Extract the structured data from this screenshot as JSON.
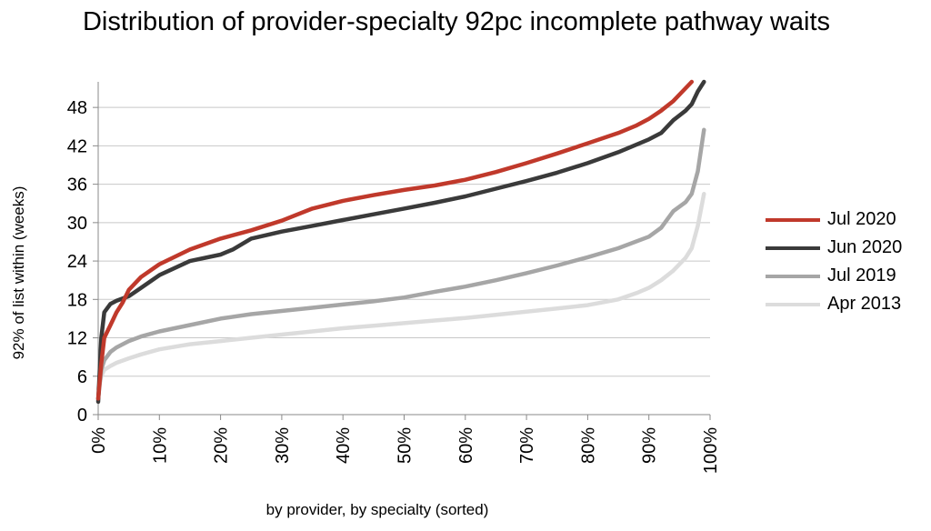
{
  "chart_data": {
    "type": "line",
    "title": "Distribution of provider-specialty 92pc incomplete pathway waits",
    "xlabel": "by provider, by specialty (sorted)",
    "ylabel": "92% of list within (weeks)",
    "x_unit": "%",
    "xlim": [
      0,
      100
    ],
    "ylim": [
      0,
      52
    ],
    "xticks": [
      0,
      10,
      20,
      30,
      40,
      50,
      60,
      70,
      80,
      90,
      100
    ],
    "xtick_labels": [
      "0%",
      "10%",
      "20%",
      "30%",
      "40%",
      "50%",
      "60%",
      "70%",
      "80%",
      "90%",
      "100%"
    ],
    "yticks": [
      0,
      6,
      12,
      18,
      24,
      30,
      36,
      42,
      48
    ],
    "ytick_labels": [
      "0",
      "6",
      "12",
      "18",
      "24",
      "30",
      "36",
      "42",
      "48"
    ],
    "grid": "horizontal",
    "legend_position": "right",
    "series": [
      {
        "name": "Jul 2020",
        "color": "#c0392b",
        "x": [
          0,
          0.5,
          1,
          2,
          3,
          4,
          5,
          7,
          10,
          15,
          20,
          25,
          30,
          35,
          40,
          45,
          50,
          55,
          60,
          65,
          70,
          75,
          80,
          85,
          88,
          90,
          92,
          94,
          96,
          97
        ],
        "y": [
          2.5,
          8,
          12,
          14,
          16,
          17.5,
          19.5,
          21.5,
          23.5,
          25.8,
          27.5,
          28.8,
          30.3,
          32.2,
          33.4,
          34.3,
          35.1,
          35.8,
          36.7,
          37.9,
          39.3,
          40.8,
          42.4,
          44,
          45.2,
          46.2,
          47.5,
          49,
          51,
          52
        ]
      },
      {
        "name": "Jun 2020",
        "color": "#3a3a3a",
        "x": [
          0,
          0.5,
          1,
          2,
          3,
          5,
          7,
          10,
          15,
          20,
          22,
          25,
          30,
          35,
          40,
          45,
          50,
          55,
          60,
          65,
          70,
          75,
          80,
          85,
          90,
          92,
          94,
          96,
          97,
          98,
          99
        ],
        "y": [
          2,
          12,
          16,
          17.3,
          17.8,
          18.5,
          19.8,
          21.8,
          24,
          25,
          25.8,
          27.5,
          28.6,
          29.5,
          30.4,
          31.3,
          32.2,
          33.1,
          34.1,
          35.3,
          36.5,
          37.8,
          39.3,
          41,
          43,
          44,
          46,
          47.5,
          48.5,
          50.5,
          52
        ]
      },
      {
        "name": "Jul 2019",
        "color": "#a6a6a6",
        "x": [
          0,
          0.5,
          1,
          2,
          3,
          5,
          7,
          10,
          15,
          20,
          25,
          30,
          35,
          40,
          45,
          50,
          55,
          60,
          65,
          70,
          75,
          80,
          85,
          90,
          92,
          93,
          94,
          96,
          97,
          98,
          99
        ],
        "y": [
          2.5,
          7,
          8.5,
          9.8,
          10.5,
          11.5,
          12.2,
          13,
          14,
          15,
          15.7,
          16.2,
          16.7,
          17.2,
          17.7,
          18.3,
          19.2,
          20,
          21,
          22.1,
          23.3,
          24.6,
          26,
          27.8,
          29.2,
          30.5,
          31.8,
          33.2,
          34.5,
          38,
          44.5
        ]
      },
      {
        "name": "Apr 2013",
        "color": "#dcdcdc",
        "x": [
          0,
          0.5,
          1,
          2,
          3,
          5,
          7,
          10,
          15,
          20,
          25,
          30,
          35,
          40,
          45,
          50,
          55,
          60,
          65,
          70,
          75,
          80,
          85,
          88,
          90,
          92,
          94,
          96,
          97,
          98,
          99
        ],
        "y": [
          4,
          6,
          7,
          7.6,
          8.1,
          8.8,
          9.4,
          10.2,
          11,
          11.5,
          12,
          12.5,
          13,
          13.5,
          13.9,
          14.3,
          14.7,
          15.1,
          15.6,
          16.1,
          16.6,
          17.1,
          18,
          19,
          19.8,
          21,
          22.5,
          24.5,
          26,
          29.5,
          34.5
        ]
      }
    ]
  }
}
